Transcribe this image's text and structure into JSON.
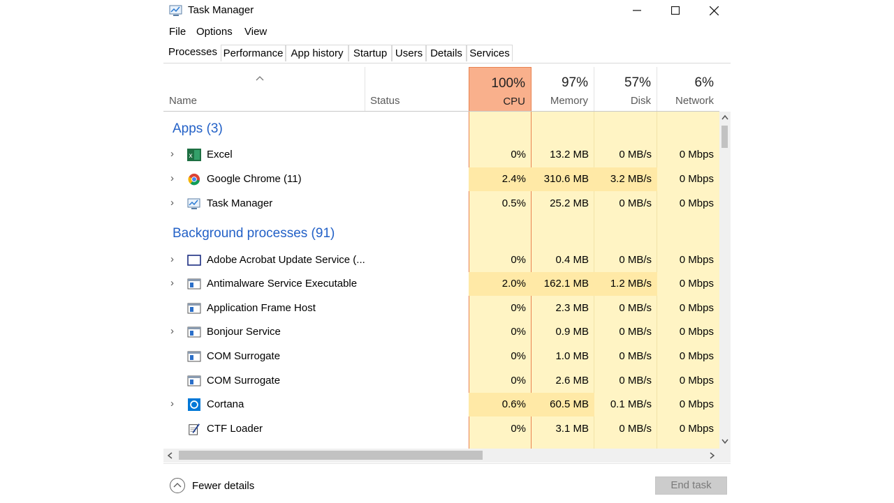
{
  "window": {
    "title": "Task Manager"
  },
  "menu": [
    "File",
    "Options",
    "View"
  ],
  "tabs": [
    "Processes",
    "Performance",
    "App history",
    "Startup",
    "Users",
    "Details",
    "Services"
  ],
  "columns": {
    "name": "Name",
    "status": "Status",
    "cpu": {
      "pct": "100%",
      "label": "CPU"
    },
    "memory": {
      "pct": "97%",
      "label": "Memory"
    },
    "disk": {
      "pct": "57%",
      "label": "Disk"
    },
    "network": {
      "pct": "6%",
      "label": "Network"
    }
  },
  "groups": {
    "apps": "Apps (3)",
    "background": "Background processes (91)"
  },
  "apps": [
    {
      "name": "Excel",
      "icon": "excel-icon",
      "cpu": "0%",
      "memory": "13.2 MB",
      "disk": "0 MB/s",
      "network": "0 Mbps"
    },
    {
      "name": "Google Chrome (11)",
      "icon": "chrome-icon",
      "cpu": "2.4%",
      "memory": "310.6 MB",
      "disk": "3.2 MB/s",
      "network": "0 Mbps"
    },
    {
      "name": "Task Manager",
      "icon": "task-manager-icon",
      "cpu": "0.5%",
      "memory": "25.2 MB",
      "disk": "0 MB/s",
      "network": "0 Mbps"
    }
  ],
  "background": [
    {
      "name": "Adobe Acrobat Update Service (...",
      "icon": "window-icon",
      "cpu": "0%",
      "memory": "0.4 MB",
      "disk": "0 MB/s",
      "network": "0 Mbps"
    },
    {
      "name": "Antimalware Service Executable",
      "icon": "service-icon",
      "cpu": "2.0%",
      "memory": "162.1 MB",
      "disk": "1.2 MB/s",
      "network": "0 Mbps"
    },
    {
      "name": "Application Frame Host",
      "icon": "service-icon",
      "cpu": "0%",
      "memory": "2.3 MB",
      "disk": "0 MB/s",
      "network": "0 Mbps"
    },
    {
      "name": "Bonjour Service",
      "icon": "service-icon",
      "cpu": "0%",
      "memory": "0.9 MB",
      "disk": "0 MB/s",
      "network": "0 Mbps"
    },
    {
      "name": "COM Surrogate",
      "icon": "service-icon",
      "cpu": "0%",
      "memory": "1.0 MB",
      "disk": "0 MB/s",
      "network": "0 Mbps"
    },
    {
      "name": "COM Surrogate",
      "icon": "service-icon",
      "cpu": "0%",
      "memory": "2.6 MB",
      "disk": "0 MB/s",
      "network": "0 Mbps"
    },
    {
      "name": "Cortana",
      "icon": "cortana-icon",
      "cpu": "0.6%",
      "memory": "60.5 MB",
      "disk": "0.1 MB/s",
      "network": "0 Mbps"
    },
    {
      "name": "CTF Loader",
      "icon": "notepad-pen-icon",
      "cpu": "0%",
      "memory": "3.1 MB",
      "disk": "0 MB/s",
      "network": "0 Mbps"
    }
  ],
  "footer": {
    "fewer_details": "Fewer details",
    "end_task": "End task"
  },
  "colors": {
    "accent_blue": "#2361c7",
    "cpu_header_bg": "#f9b08c",
    "cpu_border": "#e8824f",
    "heat_light": "#fff4c4",
    "heat_mid": "#ffefb8"
  }
}
